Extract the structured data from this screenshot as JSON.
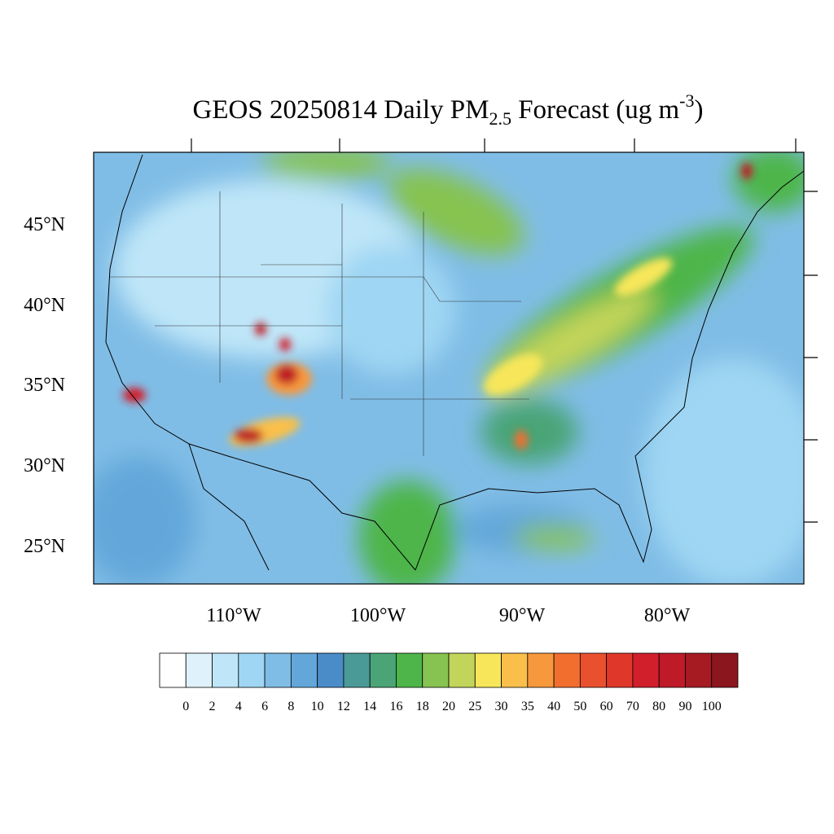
{
  "title": {
    "main": "GEOS 20250814 Daily PM",
    "subscript": "2.5",
    "rest": " Forecast (ug m",
    "superscript": "-3",
    "end": ")"
  },
  "latitude_labels": [
    "45°N",
    "40°N",
    "35°N",
    "30°N",
    "25°N"
  ],
  "longitude_labels": [
    "110°W",
    "100°W",
    "90°W",
    "80°W"
  ],
  "colorbar": {
    "levels": [
      0,
      2,
      4,
      6,
      8,
      10,
      12,
      14,
      16,
      18,
      20,
      25,
      30,
      35,
      40,
      50,
      60,
      70,
      80,
      90,
      100
    ],
    "colors": [
      "#ffffff",
      "#dff2fb",
      "#bfe6f8",
      "#9fd6f3",
      "#80bde6",
      "#63a7da",
      "#4a8cc8",
      "#4a9a98",
      "#4aa476",
      "#4db54a",
      "#86c350",
      "#c2d45a",
      "#f7e65a",
      "#f9bf4a",
      "#f7983c",
      "#f26e2f",
      "#e9512e",
      "#df3729",
      "#d11f2b",
      "#be1a28",
      "#a61a22",
      "#8c161d"
    ]
  }
}
